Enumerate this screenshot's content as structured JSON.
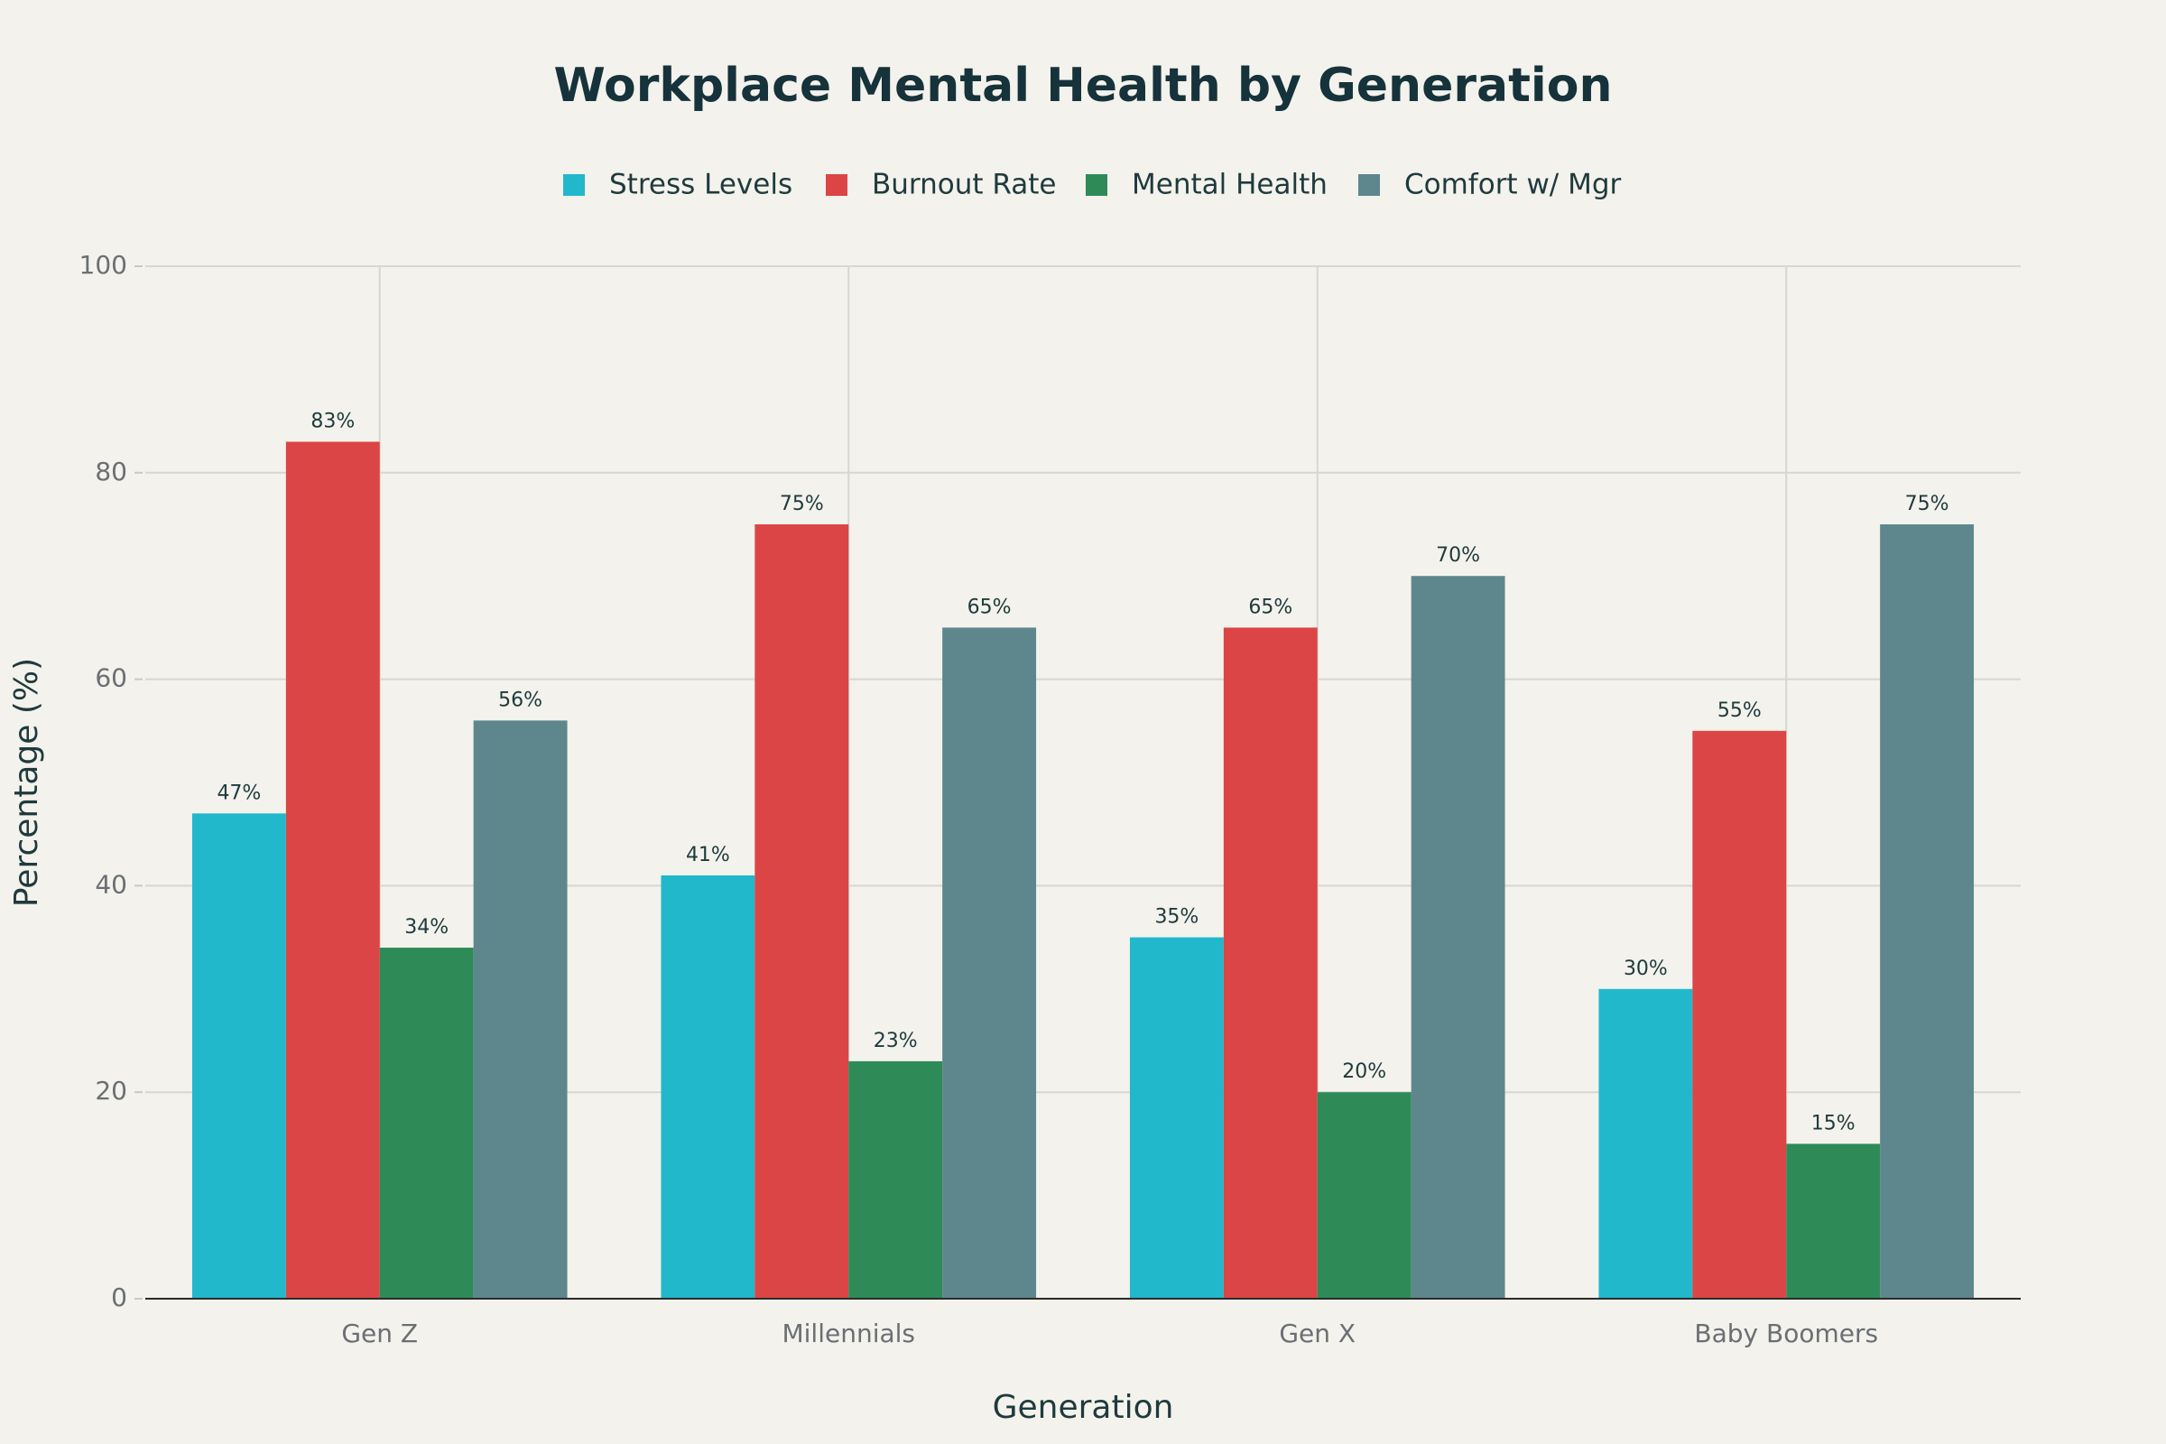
{
  "chart_data": {
    "type": "bar",
    "title": "Workplace Mental Health by Generation",
    "x_label": "Generation",
    "y_label": "Percentage (%)",
    "categories": [
      "Gen Z",
      "Millennials",
      "Gen X",
      "Baby Boomers"
    ],
    "series": [
      {
        "name": "Stress Levels",
        "color": "#21b8cc",
        "values": [
          47,
          41,
          35,
          30
        ],
        "value_labels": [
          "47%",
          "41%",
          "35%",
          "30%"
        ]
      },
      {
        "name": "Burnout Rate",
        "color": "#db4545",
        "values": [
          83,
          75,
          65,
          55
        ],
        "value_labels": [
          "83%",
          "75%",
          "65%",
          "55%"
        ]
      },
      {
        "name": "Mental Health",
        "color": "#2e8b57",
        "values": [
          34,
          23,
          20,
          15
        ],
        "value_labels": [
          "34%",
          "23%",
          "20%",
          "15%"
        ]
      },
      {
        "name": "Comfort w/ Mgr",
        "color": "#5e878d",
        "values": [
          56,
          65,
          70,
          75
        ],
        "value_labels": [
          "56%",
          "65%",
          "70%",
          "75%"
        ]
      }
    ],
    "ylim": [
      0,
      100
    ],
    "yticks": [
      0,
      20,
      40,
      60,
      80,
      100
    ],
    "grid": true
  }
}
